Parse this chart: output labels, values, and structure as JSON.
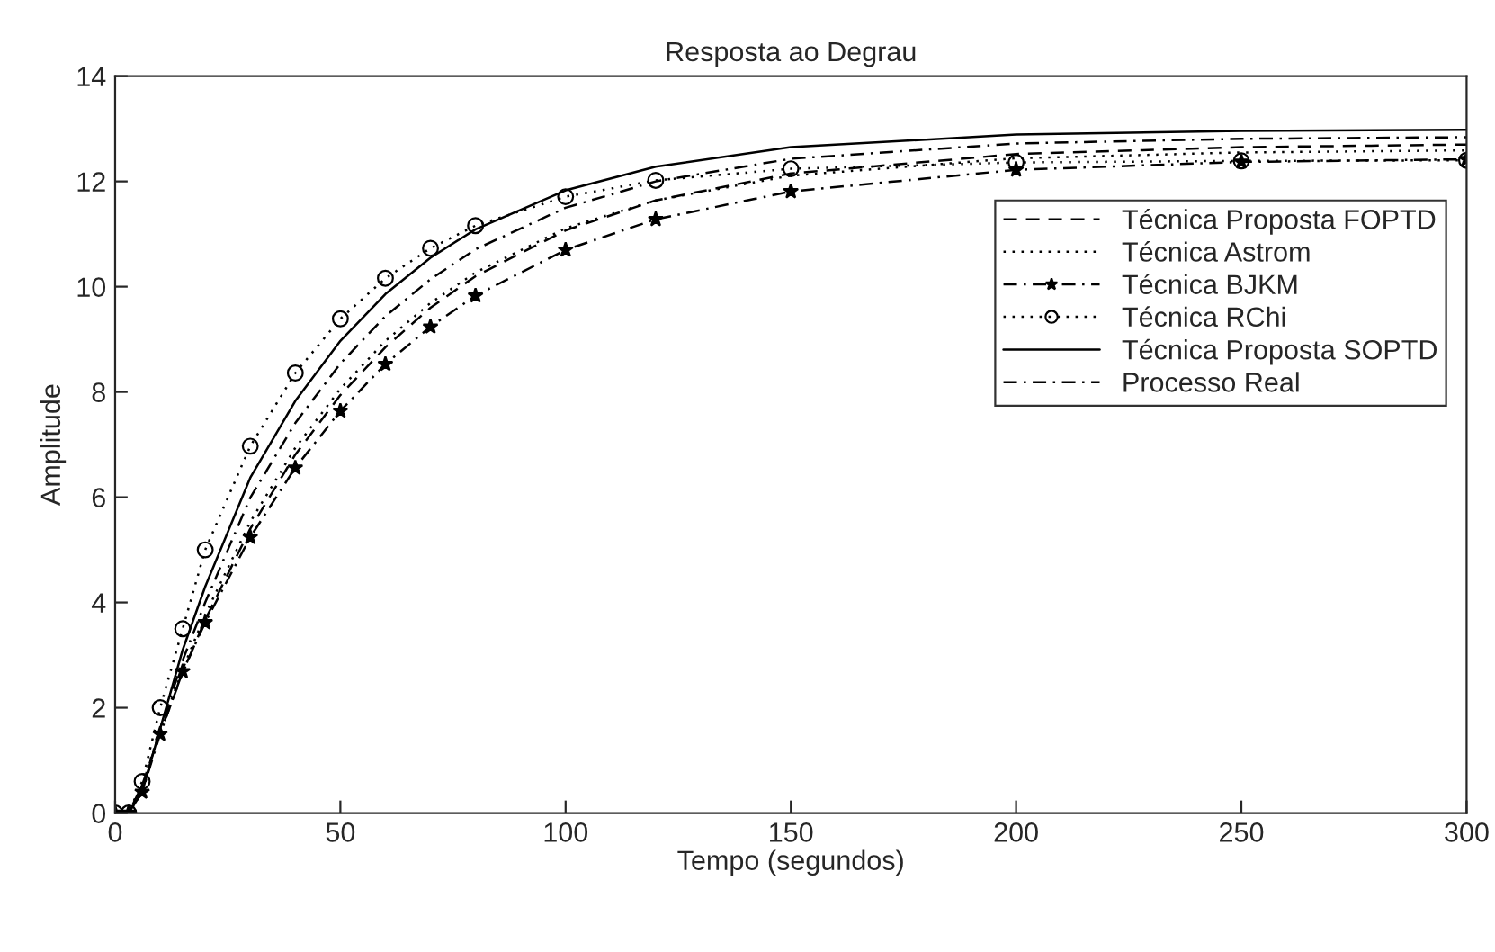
{
  "chart_data": {
    "type": "line",
    "title": "Resposta ao Degrau",
    "xlabel": "Tempo (segundos)",
    "ylabel": "Amplitude",
    "x": [
      0,
      3,
      6,
      10,
      15,
      20,
      30,
      40,
      50,
      60,
      70,
      80,
      100,
      120,
      150,
      200,
      250,
      300
    ],
    "series": [
      {
        "name": "Técnica Proposta FOPTD",
        "color": "#000000",
        "line_style": "dashed",
        "marker": "none",
        "values": [
          0,
          0,
          0.53,
          1.53,
          2.66,
          3.67,
          5.4,
          6.81,
          7.94,
          8.85,
          9.6,
          10.2,
          11.07,
          11.64,
          12.15,
          12.52,
          12.65,
          12.7
        ]
      },
      {
        "name": "Técnica Astrom",
        "color": "#000000",
        "line_style": "dotted",
        "marker": "none",
        "values": [
          0,
          0,
          0.55,
          1.57,
          2.73,
          3.77,
          5.53,
          6.94,
          8.06,
          8.97,
          9.69,
          10.27,
          11.11,
          11.64,
          12.11,
          12.44,
          12.55,
          12.59
        ]
      },
      {
        "name": "Técnica BJKM",
        "color": "#000000",
        "line_style": "dashdot",
        "marker": "star",
        "values": [
          0,
          0,
          0.4,
          1.5,
          2.69,
          3.62,
          5.24,
          6.56,
          7.64,
          8.53,
          9.24,
          9.83,
          10.7,
          11.28,
          11.81,
          12.22,
          12.37,
          12.42
        ]
      },
      {
        "name": "Técnica RChi",
        "color": "#000000",
        "line_style": "dotted",
        "marker": "circle",
        "values": [
          0,
          0,
          0.6,
          2.0,
          3.5,
          5.0,
          6.97,
          8.36,
          9.39,
          10.16,
          10.73,
          11.16,
          11.71,
          12.02,
          12.24,
          12.36,
          12.39,
          12.4
        ]
      },
      {
        "name": "Técnica Proposta SOPTD",
        "color": "#000000",
        "line_style": "solid",
        "marker": "none",
        "values": [
          0,
          0,
          0.4,
          1.6,
          3.1,
          4.3,
          6.37,
          7.83,
          8.97,
          9.86,
          10.55,
          11.09,
          11.83,
          12.28,
          12.65,
          12.89,
          12.96,
          12.98
        ]
      },
      {
        "name": "Processo Real",
        "color": "#000000",
        "line_style": "dashdot",
        "marker": "none",
        "values": [
          0,
          0,
          0.4,
          1.6,
          2.9,
          4.0,
          5.99,
          7.41,
          8.54,
          9.44,
          10.14,
          10.71,
          11.5,
          12.0,
          12.43,
          12.72,
          12.81,
          12.84
        ]
      }
    ],
    "xlim": [
      0,
      300
    ],
    "xticks": [
      0,
      50,
      100,
      150,
      200,
      250,
      300
    ],
    "ylim": [
      0,
      14
    ],
    "yticks": [
      0,
      2,
      4,
      6,
      8,
      10,
      12,
      14
    ],
    "grid": false,
    "legend": "top right"
  }
}
